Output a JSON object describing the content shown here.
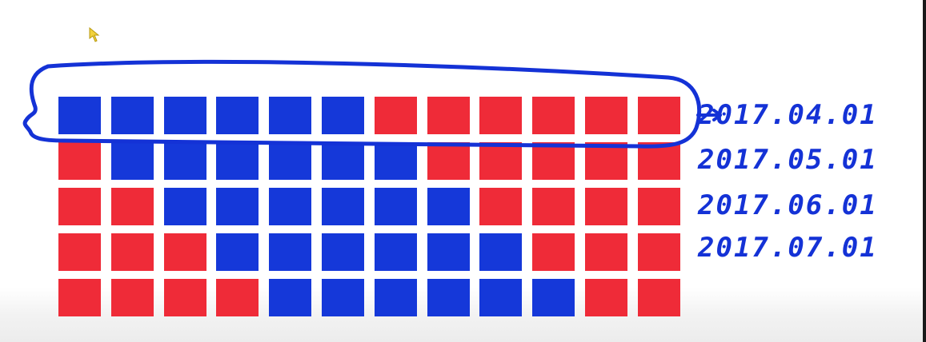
{
  "colors": {
    "blue": "#1538d9",
    "red": "#ef2b38",
    "ink": "#1432d6"
  },
  "grid": {
    "columns": 12,
    "rows": [
      [
        "blue",
        "blue",
        "blue",
        "blue",
        "blue",
        "blue",
        "red",
        "red",
        "red",
        "red",
        "red",
        "red"
      ],
      [
        "red",
        "blue",
        "blue",
        "blue",
        "blue",
        "blue",
        "blue",
        "red",
        "red",
        "red",
        "red",
        "red"
      ],
      [
        "red",
        "red",
        "blue",
        "blue",
        "blue",
        "blue",
        "blue",
        "blue",
        "red",
        "red",
        "red",
        "red"
      ],
      [
        "red",
        "red",
        "red",
        "blue",
        "blue",
        "blue",
        "blue",
        "blue",
        "blue",
        "red",
        "red",
        "red"
      ],
      [
        "red",
        "red",
        "red",
        "red",
        "blue",
        "blue",
        "blue",
        "blue",
        "blue",
        "blue",
        "red",
        "red"
      ]
    ]
  },
  "annotations": {
    "highlighted_row": 0,
    "dates": [
      "2017.04.01",
      "2017.05.01",
      "2017.06.01",
      "2017.07.01"
    ]
  },
  "icons": {
    "cursor": "pointer-cursor-icon"
  }
}
